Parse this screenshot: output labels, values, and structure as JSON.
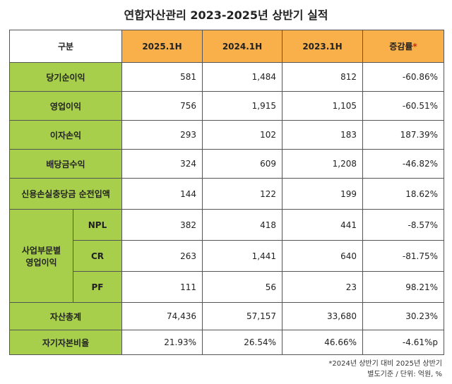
{
  "title": "연합자산관리 2023-2025년 상반기 실적",
  "header": {
    "label": "구분",
    "columns": [
      "2025.1H",
      "2024.1H",
      "2023.1H"
    ],
    "change": "증감률",
    "change_mark": "*"
  },
  "rows": [
    {
      "label": "당기순이익",
      "values": [
        "581",
        "1,484",
        "812",
        "-60.86%"
      ]
    },
    {
      "label": "영업이익",
      "values": [
        "756",
        "1,915",
        "1,105",
        "-60.51%"
      ]
    },
    {
      "label": "이자손익",
      "values": [
        "293",
        "102",
        "183",
        "187.39%"
      ]
    },
    {
      "label": "배당금수익",
      "values": [
        "324",
        "609",
        "1,208",
        "-46.82%"
      ]
    },
    {
      "label": "신용손실충당금 순전입액",
      "values": [
        "144",
        "122",
        "199",
        "18.62%"
      ]
    }
  ],
  "group": {
    "label": [
      "사업부문별",
      "영업이익"
    ],
    "rows": [
      {
        "label": "NPL",
        "values": [
          "382",
          "418",
          "441",
          "-8.57%"
        ]
      },
      {
        "label": "CR",
        "values": [
          "263",
          "1,441",
          "640",
          "-81.75%"
        ]
      },
      {
        "label": "PF",
        "values": [
          "111",
          "56",
          "23",
          "98.21%"
        ]
      }
    ]
  },
  "tail_rows": [
    {
      "label": "자산총계",
      "values": [
        "74,436",
        "57,157",
        "33,680",
        "30.23%"
      ]
    },
    {
      "label": "자기자본비율",
      "values": [
        "21.93%",
        "26.54%",
        "46.66%",
        "-4.61%p"
      ]
    }
  ],
  "notes": [
    "*2024년 상반기 대비 2025년 상반기",
    "별도기준 / 단위: 억원, %"
  ]
}
